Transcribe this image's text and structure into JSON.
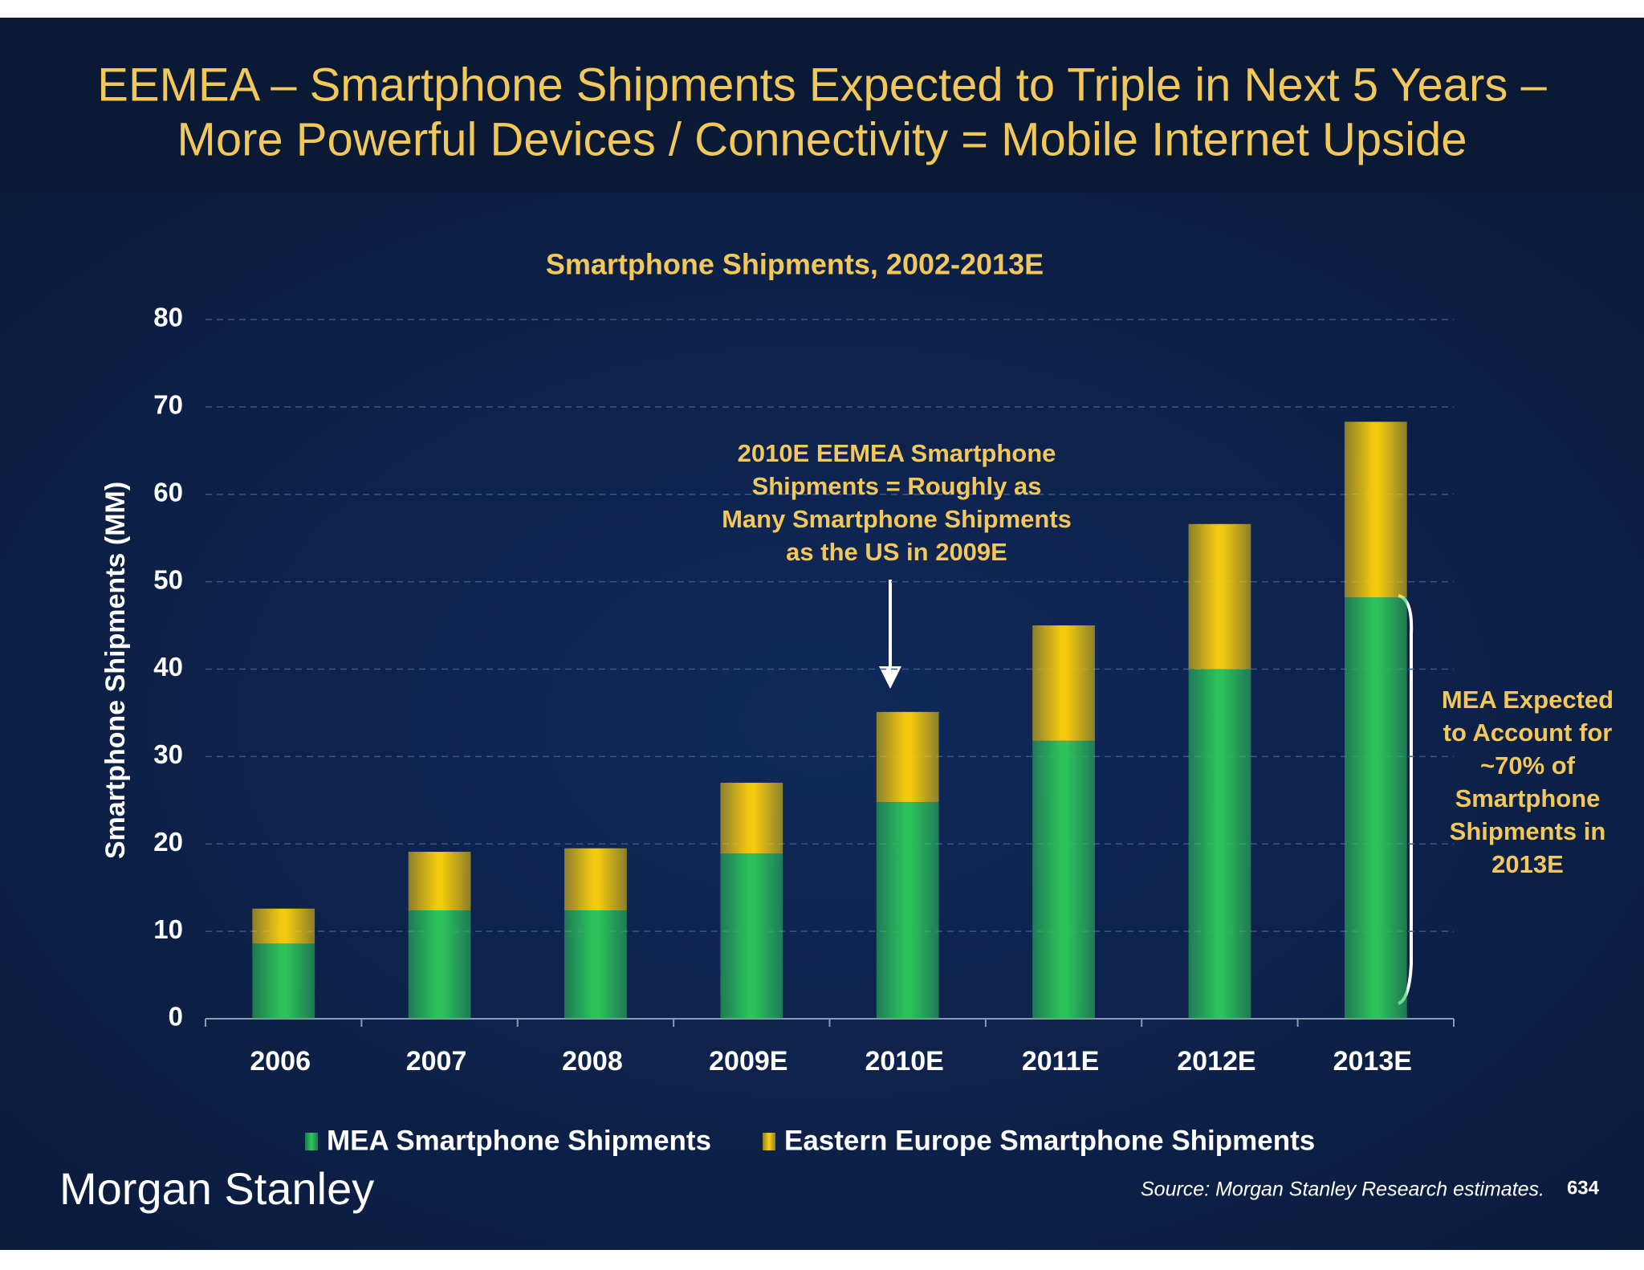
{
  "header": {
    "title_lines": [
      "EEMEA – Smartphone Shipments Expected to Triple in Next 5 Years –",
      "More Powerful Devices / Connectivity = Mobile Internet Upside"
    ]
  },
  "chart_data": {
    "type": "stacked_bar",
    "title": "Smartphone Shipments, 2002-2013E",
    "y_label": "Smartphone Shipments (MM)",
    "categories": [
      "2006",
      "2007",
      "2008",
      "2009E",
      "2010E",
      "2011E",
      "2012E",
      "2013E"
    ],
    "series": [
      {
        "name": "MEA Smartphone Shipments",
        "color": "#2cc15b",
        "values": [
          8.6,
          12.4,
          12.4,
          18.9,
          24.8,
          31.8,
          40.0,
          48.2
        ]
      },
      {
        "name": "Eastern Europe Smartphone Shipments",
        "color": "#f2c90f",
        "values": [
          4.0,
          6.7,
          7.1,
          8.1,
          10.3,
          13.2,
          16.6,
          20.1
        ]
      }
    ],
    "ylim": [
      0,
      80
    ],
    "yticks": [
      0,
      10,
      20,
      30,
      40,
      50,
      60,
      70,
      80
    ],
    "grid": true,
    "annotations": [
      {
        "lines": [
          "2010E EEMEA Smartphone",
          "Shipments = Roughly as",
          "Many Smartphone Shipments",
          "as the US in 2009E"
        ]
      },
      {
        "lines": [
          "MEA Expected",
          "to Account for",
          "~70% of",
          "Smartphone",
          "Shipments in",
          "2013E"
        ]
      }
    ]
  },
  "footer": {
    "logo": "Morgan Stanley",
    "source": "Source: Morgan Stanley Research estimates.",
    "page": "634"
  }
}
